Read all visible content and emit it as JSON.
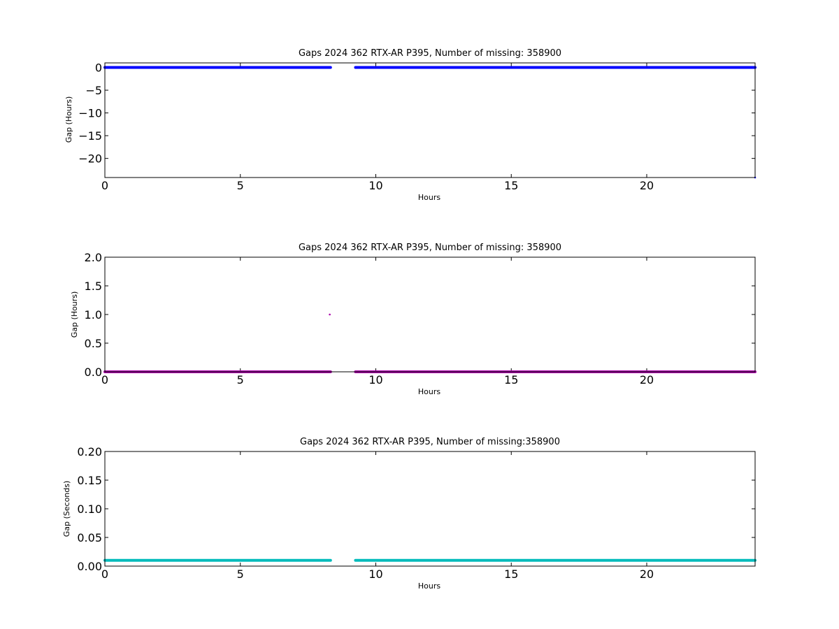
{
  "figure": {
    "background": "#ffffff"
  },
  "chart_data": [
    {
      "type": "scatter",
      "title": "Gaps 2024 362 RTX-AR  P395, Number of missing: 358900",
      "xlabel": "Hours",
      "ylabel": "Gap (Hours)",
      "xlim": [
        0,
        24
      ],
      "ylim": [
        -24.2,
        1
      ],
      "xticks": [
        0,
        5,
        10,
        15,
        20
      ],
      "xtick_labels": [
        "0",
        "5",
        "10",
        "15",
        "20"
      ],
      "yticks": [
        0,
        -5,
        -10,
        -15,
        -20
      ],
      "ytick_labels": [
        "0",
        "−5",
        "−10",
        "−15",
        "−20"
      ],
      "grid": false,
      "series": [
        {
          "color": "#0000ff",
          "segments": [
            {
              "x": [
                0,
                8.33
              ],
              "y": [
                0,
                0
              ]
            },
            {
              "x": [
                9.25,
                24
              ],
              "y": [
                0,
                0
              ]
            }
          ],
          "points": [
            {
              "x": 24,
              "y": -24.2
            }
          ]
        }
      ]
    },
    {
      "type": "scatter",
      "title": "Gaps 2024 362 RTX-AR  P395, Number of missing: 358900",
      "xlabel": "Hours",
      "ylabel": "Gap (Hours)",
      "xlim": [
        0,
        24
      ],
      "ylim": [
        0,
        2
      ],
      "xticks": [
        0,
        5,
        10,
        15,
        20
      ],
      "xtick_labels": [
        "0",
        "5",
        "10",
        "15",
        "20"
      ],
      "yticks": [
        0,
        0.5,
        1,
        1.5,
        2
      ],
      "ytick_labels": [
        "0.0",
        "0.5",
        "1.0",
        "1.5",
        "2.0"
      ],
      "grid": false,
      "series": [
        {
          "color": "#aa00aa",
          "segments": [
            {
              "x": [
                0,
                8.33
              ],
              "y": [
                0,
                0
              ]
            },
            {
              "x": [
                9.25,
                24
              ],
              "y": [
                0,
                0
              ]
            }
          ],
          "points": [
            {
              "x": 8.3,
              "y": 1.0
            }
          ]
        }
      ]
    },
    {
      "type": "scatter",
      "title": "Gaps 2024 362 RTX-AR  P395, Number of missing:358900",
      "xlabel": "Hours",
      "ylabel": "Gap (Seconds)",
      "xlim": [
        0,
        24
      ],
      "ylim": [
        0,
        0.2
      ],
      "xticks": [
        0,
        5,
        10,
        15,
        20
      ],
      "xtick_labels": [
        "0",
        "5",
        "10",
        "15",
        "20"
      ],
      "yticks": [
        0,
        0.05,
        0.1,
        0.15,
        0.2
      ],
      "ytick_labels": [
        "0.00",
        "0.05",
        "0.10",
        "0.15",
        "0.20"
      ],
      "grid": false,
      "series": [
        {
          "color": "#00bbbb",
          "segments": [
            {
              "x": [
                0,
                8.33
              ],
              "y": [
                0.01,
                0.01
              ]
            },
            {
              "x": [
                9.25,
                24
              ],
              "y": [
                0.01,
                0.01
              ]
            }
          ],
          "points": []
        }
      ]
    }
  ]
}
